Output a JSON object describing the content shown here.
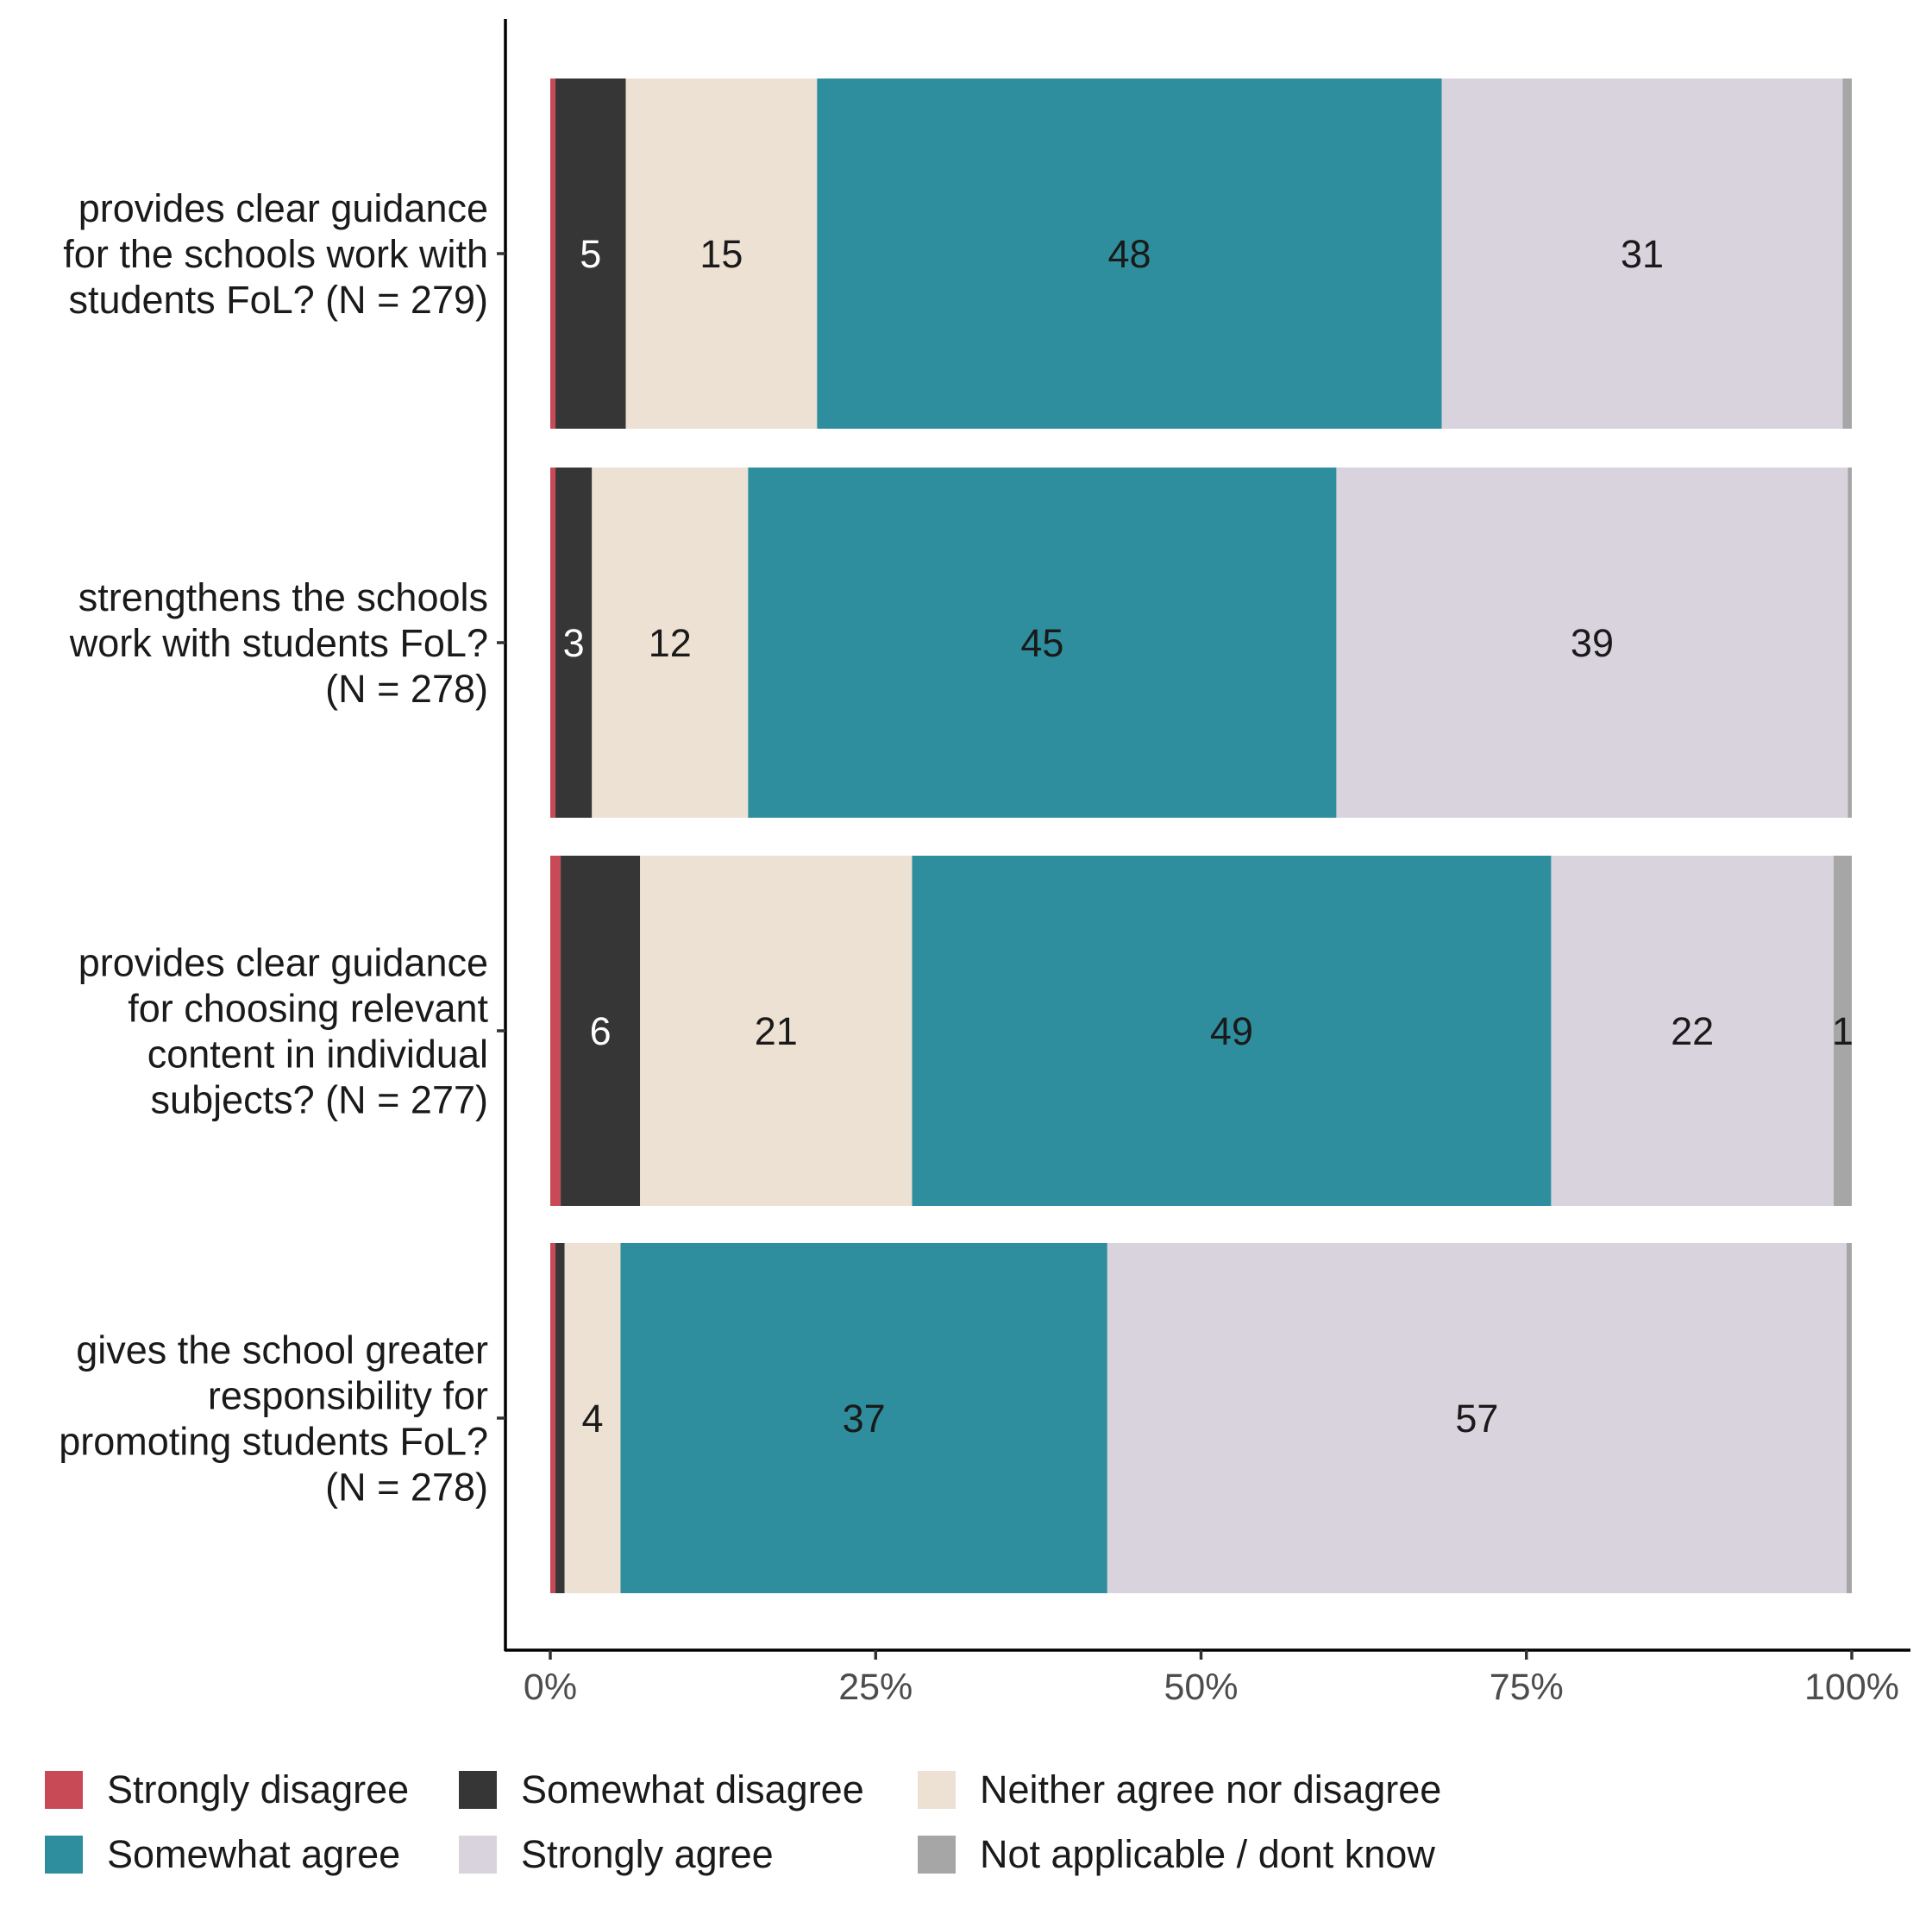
{
  "chart_data": {
    "type": "bar",
    "orientation": "horizontal",
    "stacked": "percent",
    "categories": [
      [
        "provides clear guidance",
        "for the schools work with",
        "students FoL? (N = 279)"
      ],
      [
        "strengthens the schools",
        "work with students FoL?",
        "(N = 278)"
      ],
      [
        "provides clear guidance",
        "for choosing relevant",
        "content in individual",
        "subjects? (N = 277)"
      ],
      [
        "gives the school greater",
        "responsibility for",
        "promoting students FoL?",
        "(N = 278)"
      ]
    ],
    "series": [
      {
        "name": "Strongly disagree",
        "color": "#c84a57",
        "text_color": "#ffffff",
        "values": [
          0.4,
          0.4,
          0.8,
          0.4
        ],
        "labels": [
          "",
          "",
          "",
          ""
        ]
      },
      {
        "name": "Somewhat disagree",
        "color": "#363636",
        "text_color": "#ffffff",
        "values": [
          5.4,
          2.8,
          6.1,
          0.7
        ],
        "labels": [
          "5",
          "3",
          "6",
          ""
        ]
      },
      {
        "name": "Neither agree nor disagree",
        "color": "#ece1d3",
        "text_color": "#1a1a1a",
        "values": [
          14.7,
          12.0,
          20.9,
          4.3
        ],
        "labels": [
          "15",
          "12",
          "21",
          "4"
        ]
      },
      {
        "name": "Somewhat agree",
        "color": "#2e8e9e",
        "text_color": "#1a1a1a",
        "values": [
          48.0,
          45.2,
          49.1,
          37.4
        ],
        "labels": [
          "48",
          "45",
          "49",
          "37"
        ]
      },
      {
        "name": "Strongly agree",
        "color": "#d9d3de",
        "text_color": "#1a1a1a",
        "values": [
          30.8,
          39.3,
          21.7,
          56.8
        ],
        "labels": [
          "31",
          "39",
          "22",
          "57"
        ]
      },
      {
        "name": "Not applicable / dont know",
        "color": "#a6a6a6",
        "text_color": "#1a1a1a",
        "values": [
          0.7,
          0.3,
          1.4,
          0.4
        ],
        "labels": [
          "",
          "",
          "1",
          ""
        ]
      }
    ],
    "x_ticks": [
      "0%",
      "25%",
      "50%",
      "75%",
      "100%"
    ],
    "xlim": [
      0,
      100
    ],
    "grid": false,
    "legend_position": "bottom"
  }
}
